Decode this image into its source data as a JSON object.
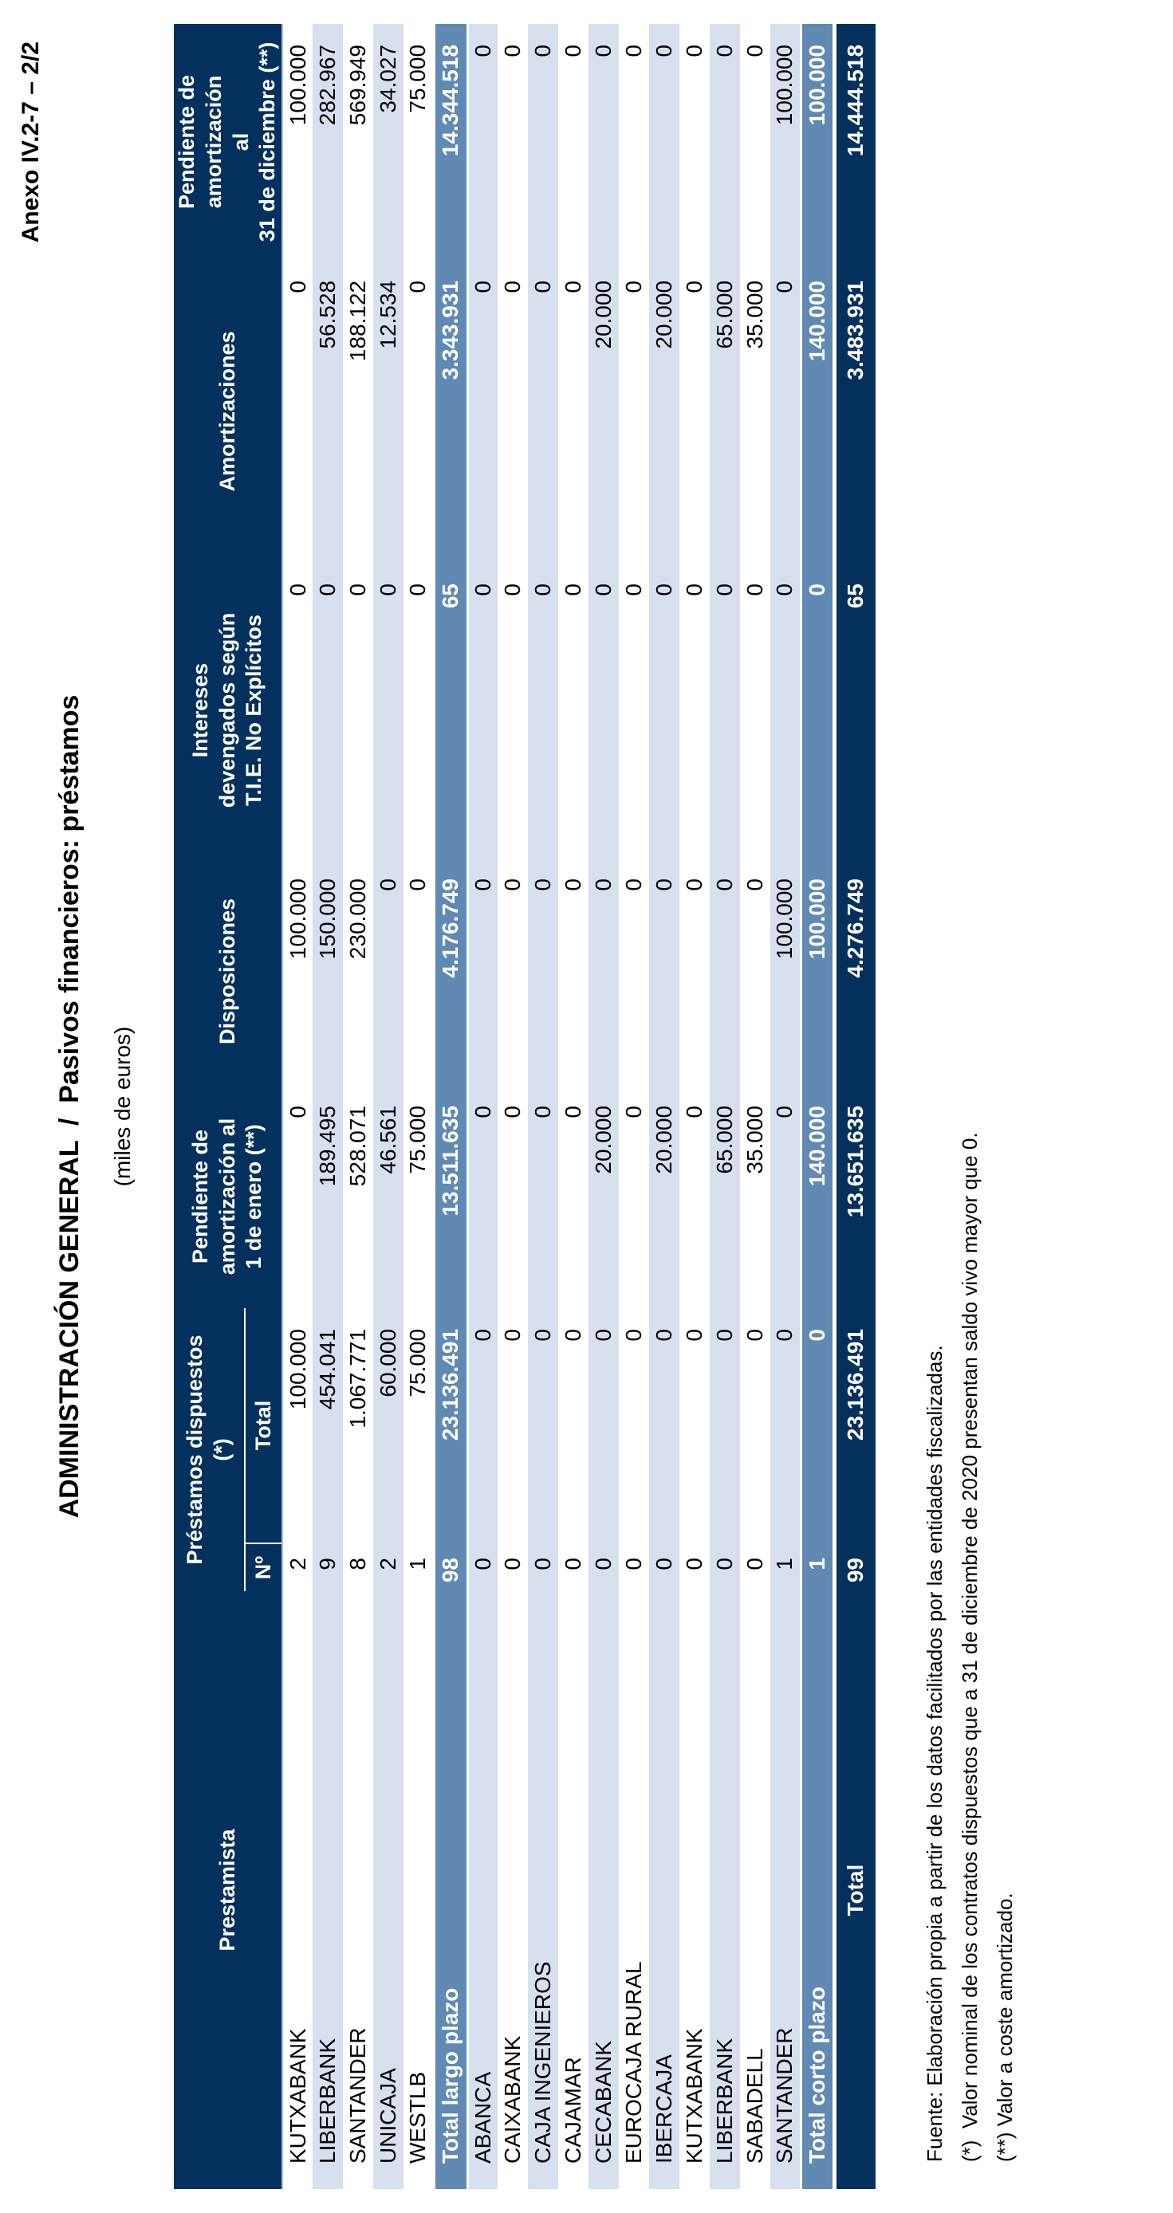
{
  "page": {
    "annex_label": "Anexo IV.2-7 – 2/2",
    "title": "ADMINISTRACIÓN GENERAL  /  Pasivos financieros: préstamos",
    "subtitle": "(miles de euros)"
  },
  "table": {
    "headers": {
      "prestamista": "Prestamista",
      "prestamos_dispuestos_group": "Préstamos dispuestos\n(*)",
      "numero": "Nº",
      "total": "Total",
      "pendiente_enero": "Pendiente de\namortización al\n1 de enero (**)",
      "disposiciones": "Disposiciones",
      "intereses": "Intereses\ndevengados según\nT.I.E. No Explícitos",
      "amortizaciones": "Amortizaciones",
      "pendiente_diciembre": "Pendiente de amortización\nal\n31 de diciembre (**)"
    },
    "rows": [
      {
        "label": "KUTXABANK",
        "type": "bank",
        "shade": "white",
        "values": [
          "2",
          "100.000",
          "0",
          "100.000",
          "0",
          "0",
          "100.000"
        ]
      },
      {
        "label": "LIBERBANK",
        "type": "bank",
        "shade": "light",
        "values": [
          "9",
          "454.041",
          "189.495",
          "150.000",
          "0",
          "56.528",
          "282.967"
        ]
      },
      {
        "label": "SANTANDER",
        "type": "bank",
        "shade": "white",
        "values": [
          "8",
          "1.067.771",
          "528.071",
          "230.000",
          "0",
          "188.122",
          "569.949"
        ]
      },
      {
        "label": "UNICAJA",
        "type": "bank",
        "shade": "light",
        "values": [
          "2",
          "60.000",
          "46.561",
          "0",
          "0",
          "12.534",
          "34.027"
        ]
      },
      {
        "label": "WESTLB",
        "type": "bank",
        "shade": "white",
        "values": [
          "1",
          "75.000",
          "75.000",
          "0",
          "0",
          "0",
          "75.000"
        ]
      },
      {
        "label": "Total largo plazo",
        "type": "subtotal",
        "shade": "medium",
        "values": [
          "98",
          "23.136.491",
          "13.511.635",
          "4.176.749",
          "65",
          "3.343.931",
          "14.344.518"
        ]
      },
      {
        "label": "ABANCA",
        "type": "bank",
        "shade": "light",
        "values": [
          "0",
          "0",
          "0",
          "0",
          "0",
          "0",
          "0"
        ]
      },
      {
        "label": "CAIXABANK",
        "type": "bank",
        "shade": "white",
        "values": [
          "0",
          "0",
          "0",
          "0",
          "0",
          "0",
          "0"
        ]
      },
      {
        "label": "CAJA INGENIEROS",
        "type": "bank",
        "shade": "light",
        "values": [
          "0",
          "0",
          "0",
          "0",
          "0",
          "0",
          "0"
        ]
      },
      {
        "label": "CAJAMAR",
        "type": "bank",
        "shade": "white",
        "values": [
          "0",
          "0",
          "0",
          "0",
          "0",
          "0",
          "0"
        ]
      },
      {
        "label": "CECABANK",
        "type": "bank",
        "shade": "light",
        "values": [
          "0",
          "0",
          "20.000",
          "0",
          "0",
          "20.000",
          "0"
        ]
      },
      {
        "label": "EUROCAJA RURAL",
        "type": "bank",
        "shade": "white",
        "values": [
          "0",
          "0",
          "0",
          "0",
          "0",
          "0",
          "0"
        ]
      },
      {
        "label": "IBERCAJA",
        "type": "bank",
        "shade": "light",
        "values": [
          "0",
          "0",
          "20.000",
          "0",
          "0",
          "20.000",
          "0"
        ]
      },
      {
        "label": "KUTXABANK",
        "type": "bank",
        "shade": "white",
        "values": [
          "0",
          "0",
          "0",
          "0",
          "0",
          "0",
          "0"
        ]
      },
      {
        "label": "LIBERBANK",
        "type": "bank",
        "shade": "light",
        "values": [
          "0",
          "0",
          "65.000",
          "0",
          "0",
          "65.000",
          "0"
        ]
      },
      {
        "label": "SABADELL",
        "type": "bank",
        "shade": "white",
        "values": [
          "0",
          "0",
          "35.000",
          "0",
          "0",
          "35.000",
          "0"
        ]
      },
      {
        "label": "SANTANDER",
        "type": "bank",
        "shade": "light",
        "values": [
          "1",
          "0",
          "0",
          "100.000",
          "0",
          "0",
          "100.000"
        ]
      },
      {
        "label": "Total corto plazo",
        "type": "subtotal",
        "shade": "medium",
        "values": [
          "1",
          "0",
          "140.000",
          "100.000",
          "0",
          "140.000",
          "100.000"
        ]
      },
      {
        "label": "Total",
        "type": "grand",
        "shade": "navy",
        "values": [
          "99",
          "23.136.491",
          "13.651.635",
          "4.276.749",
          "65",
          "3.483.931",
          "14.444.518"
        ]
      }
    ]
  },
  "footnotes": [
    "Fuente: Elaboración propia a partir de los datos facilitados por las entidades fiscalizadas.",
    "(*)  Valor nominal de los contratos dispuestos que a 31 de diciembre de 2020 presentan saldo vivo mayor que 0.",
    "(**) Valor a coste amortizado."
  ],
  "colors": {
    "header_navy": "#04305E",
    "subtotal_blue": "#6089B4",
    "stripe_light_blue": "#D6E0EF",
    "text_on_dark": "#FFFFFF",
    "text": "#000000"
  }
}
